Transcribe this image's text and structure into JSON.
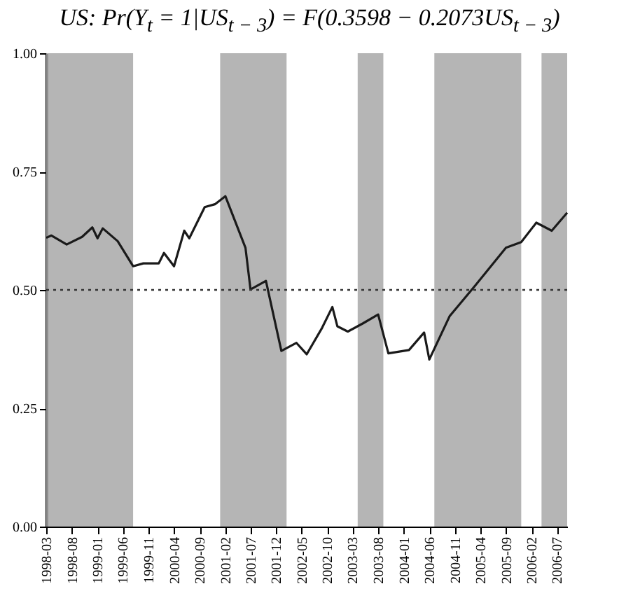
{
  "chart_data": {
    "type": "line",
    "title": "US: Pr(Y$_{t}$ = 1|US$_{t − 3}$) = F(0.3598 − 0.2073US$_{t − 3}$)",
    "x": [
      "1998-03",
      "1998-04",
      "1998-07",
      "1998-10",
      "1998-12",
      "1999-01",
      "1999-02",
      "1999-05",
      "1999-08",
      "1999-10",
      "2000-01",
      "2000-02",
      "2000-04",
      "2000-06",
      "2000-07",
      "2000-10",
      "2000-12",
      "2001-02",
      "2001-06",
      "2001-07",
      "2001-10",
      "2002-01",
      "2002-04",
      "2002-06",
      "2002-09",
      "2002-11",
      "2002-12",
      "2003-02",
      "2003-05",
      "2003-08",
      "2003-10",
      "2004-02",
      "2004-05",
      "2004-06",
      "2004-10",
      "2005-03",
      "2005-09",
      "2005-12",
      "2006-03",
      "2006-06",
      "2006-09"
    ],
    "series": [
      {
        "color": "#1a1a1a",
        "values": [
          0.61,
          0.615,
          0.596,
          0.612,
          0.632,
          0.609,
          0.63,
          0.603,
          0.55,
          0.556,
          0.556,
          0.578,
          0.55,
          0.625,
          0.609,
          0.675,
          0.681,
          0.698,
          0.589,
          0.501,
          0.519,
          0.371,
          0.388,
          0.364,
          0.42,
          0.464,
          0.423,
          0.412,
          0.429,
          0.448,
          0.366,
          0.373,
          0.41,
          0.353,
          0.445,
          0.509,
          0.589,
          0.601,
          0.642,
          0.625,
          0.663
        ]
      }
    ],
    "xlim": [
      "1998-03",
      "2006-09"
    ],
    "xticks": [
      "1998-03",
      "1998-08",
      "1999-01",
      "1999-06",
      "1999-11",
      "2000-04",
      "2000-09",
      "2001-02",
      "2001-07",
      "2001-12",
      "2002-05",
      "2002-10",
      "2003-03",
      "2003-08",
      "2004-01",
      "2004-06",
      "2004-11",
      "2005-04",
      "2005-09",
      "2006-02",
      "2006-07"
    ],
    "ylim": [
      0,
      1
    ],
    "yticks": [
      {
        "value": 0,
        "label": "0.00"
      },
      {
        "value": 0.25,
        "label": "0.25"
      },
      {
        "value": 0.5,
        "label": "0.50"
      },
      {
        "value": 0.75,
        "label": "0.75"
      },
      {
        "value": 1,
        "label": "1.00"
      }
    ],
    "ref_lines": [
      {
        "axis": "y",
        "value": 0.5,
        "color": "#333333",
        "line_style": "dotted"
      }
    ],
    "bands": [
      {
        "axis": "x",
        "from": "1998-03",
        "to": "1999-08",
        "color": "#a8a8a8"
      },
      {
        "axis": "x",
        "from": "2001-01",
        "to": "2002-02",
        "color": "#a8a8a8"
      },
      {
        "axis": "x",
        "from": "2003-04",
        "to": "2003-09",
        "color": "#a8a8a8"
      },
      {
        "axis": "x",
        "from": "2004-07",
        "to": "2005-12",
        "color": "#a8a8a8"
      },
      {
        "axis": "x",
        "from": "2006-04",
        "to": "2006-09",
        "color": "#a8a8a8"
      }
    ],
    "grid": false,
    "legend": false,
    "marker": "none",
    "line_style": "solid"
  }
}
